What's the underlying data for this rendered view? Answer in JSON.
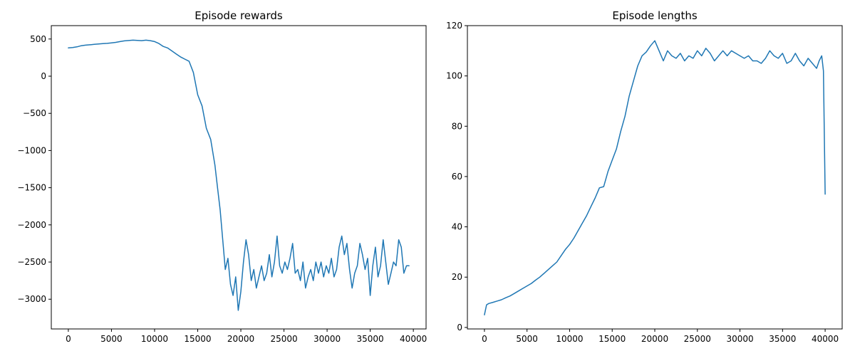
{
  "chart_data": [
    {
      "type": "line",
      "title": "Episode rewards",
      "xlabel": "",
      "ylabel": "",
      "xlim": [
        -1975,
        41475
      ],
      "ylim": [
        -3400,
        680
      ],
      "xticks": [
        0,
        5000,
        10000,
        15000,
        20000,
        25000,
        30000,
        35000,
        40000
      ],
      "xtick_labels": [
        "0",
        "5000",
        "10000",
        "15000",
        "20000",
        "25000",
        "30000",
        "35000",
        "40000"
      ],
      "yticks": [
        500,
        0,
        -500,
        -1000,
        -1500,
        -2000,
        -2500,
        -3000
      ],
      "ytick_labels": [
        "500",
        "0",
        "−500",
        "−1000",
        "−1500",
        "−2000",
        "−2500",
        "−3000"
      ],
      "grid": false,
      "series": [
        {
          "color": "#1f77b4",
          "x": [
            0,
            500,
            1000,
            1500,
            2000,
            2500,
            3000,
            3500,
            4000,
            4500,
            5000,
            5500,
            6000,
            6500,
            7000,
            7500,
            8000,
            8500,
            9000,
            9500,
            10000,
            10500,
            11000,
            11500,
            12000,
            12500,
            13000,
            13500,
            14000,
            14500,
            15000,
            15500,
            16000,
            16500,
            17000,
            17300,
            17600,
            17900,
            18200,
            18500,
            18800,
            19100,
            19400,
            19700,
            20000,
            20300,
            20600,
            20900,
            21200,
            21500,
            21800,
            22100,
            22400,
            22700,
            23000,
            23300,
            23600,
            23900,
            24200,
            24500,
            24800,
            25100,
            25400,
            25700,
            26000,
            26300,
            26600,
            26900,
            27200,
            27500,
            27800,
            28100,
            28400,
            28700,
            29000,
            29300,
            29600,
            29900,
            30200,
            30500,
            30800,
            31100,
            31400,
            31700,
            32000,
            32300,
            32600,
            32900,
            33200,
            33500,
            33800,
            34100,
            34400,
            34700,
            35000,
            35300,
            35600,
            35900,
            36200,
            36500,
            36800,
            37100,
            37400,
            37700,
            38000,
            38300,
            38600,
            38900,
            39200,
            39500
          ],
          "y": [
            380,
            385,
            395,
            410,
            418,
            422,
            428,
            433,
            438,
            442,
            448,
            455,
            465,
            475,
            480,
            485,
            482,
            478,
            485,
            478,
            465,
            440,
            400,
            380,
            340,
            300,
            260,
            230,
            200,
            50,
            -250,
            -400,
            -700,
            -850,
            -1200,
            -1500,
            -1800,
            -2200,
            -2600,
            -2450,
            -2800,
            -2950,
            -2700,
            -3150,
            -2900,
            -2500,
            -2200,
            -2400,
            -2750,
            -2600,
            -2850,
            -2700,
            -2550,
            -2750,
            -2650,
            -2400,
            -2700,
            -2500,
            -2150,
            -2550,
            -2650,
            -2500,
            -2600,
            -2450,
            -2250,
            -2650,
            -2600,
            -2750,
            -2500,
            -2850,
            -2700,
            -2600,
            -2750,
            -2500,
            -2650,
            -2500,
            -2700,
            -2550,
            -2650,
            -2450,
            -2700,
            -2600,
            -2300,
            -2150,
            -2400,
            -2250,
            -2600,
            -2850,
            -2650,
            -2550,
            -2250,
            -2400,
            -2600,
            -2450,
            -2950,
            -2550,
            -2300,
            -2700,
            -2550,
            -2200,
            -2500,
            -2800,
            -2650,
            -2500,
            -2550,
            -2200,
            -2300,
            -2650,
            -2550,
            -2550
          ]
        }
      ]
    },
    {
      "type": "line",
      "title": "Episode lengths",
      "xlabel": "",
      "ylabel": "",
      "xlim": [
        -2000,
        42000
      ],
      "ylim": [
        -0.6,
        120
      ],
      "xticks": [
        0,
        5000,
        10000,
        15000,
        20000,
        25000,
        30000,
        35000,
        40000
      ],
      "xtick_labels": [
        "0",
        "5000",
        "10000",
        "15000",
        "20000",
        "25000",
        "30000",
        "35000",
        "40000"
      ],
      "yticks": [
        0,
        20,
        40,
        60,
        80,
        100,
        120
      ],
      "ytick_labels": [
        "0",
        "20",
        "40",
        "60",
        "80",
        "100",
        "120"
      ],
      "grid": false,
      "series": [
        {
          "color": "#1f77b4",
          "x": [
            0,
            250,
            500,
            1000,
            1500,
            2000,
            2500,
            3000,
            3500,
            4000,
            4500,
            5000,
            5500,
            6000,
            6500,
            7000,
            7500,
            8000,
            8500,
            9000,
            9500,
            10000,
            10500,
            11000,
            11500,
            12000,
            12500,
            13000,
            13500,
            14000,
            14500,
            15000,
            15500,
            16000,
            16500,
            17000,
            17500,
            18000,
            18500,
            19000,
            19500,
            20000,
            20500,
            21000,
            21500,
            22000,
            22500,
            23000,
            23500,
            24000,
            24500,
            25000,
            25500,
            26000,
            26500,
            27000,
            27500,
            28000,
            28500,
            29000,
            29500,
            30000,
            30500,
            31000,
            31500,
            32000,
            32500,
            33000,
            33500,
            34000,
            34500,
            35000,
            35500,
            36000,
            36500,
            37000,
            37500,
            38000,
            38500,
            39000,
            39300,
            39600,
            39800,
            40000
          ],
          "y": [
            5,
            9,
            9.5,
            10,
            10.5,
            11,
            11.8,
            12.5,
            13.5,
            14.5,
            15.5,
            16.5,
            17.5,
            18.8,
            20,
            21.5,
            23,
            24.5,
            26,
            28.5,
            31,
            33,
            35.5,
            38.5,
            41.5,
            44.5,
            48,
            51.5,
            55.5,
            56,
            62,
            66.5,
            71,
            78,
            84,
            92,
            98,
            104,
            108,
            109.5,
            112,
            114,
            110,
            106,
            110,
            108,
            107,
            109,
            106,
            108,
            107,
            110,
            108,
            111,
            109,
            106,
            108,
            110,
            108,
            110,
            109,
            108,
            107,
            108,
            106,
            106,
            105,
            107,
            110,
            108,
            107,
            109,
            105,
            106,
            109,
            106,
            104,
            107,
            105,
            103,
            106,
            108,
            102,
            53
          ]
        }
      ]
    }
  ]
}
